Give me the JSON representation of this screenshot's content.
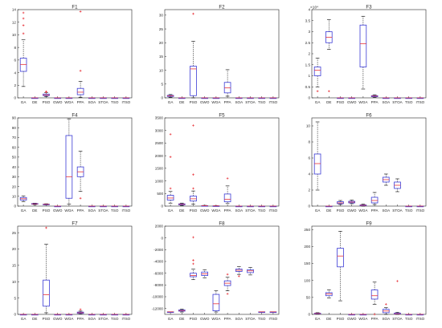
{
  "categories": [
    "GA",
    "DE",
    "PSO",
    "GWO",
    "WOA",
    "PPA",
    "SOA",
    "STOA",
    "TSO",
    "ITSO"
  ],
  "colors": {
    "box": "#3b3bd6",
    "median": "#e8333a",
    "whisker": "#000000",
    "outlier": "#e8333a",
    "axis": "#262626",
    "tick_text": "#262626"
  },
  "chart_data": [
    {
      "type": "box",
      "title": "F1",
      "ylim": [
        0,
        14
      ],
      "yticks": [
        "0",
        "2",
        "4",
        "6",
        "8",
        "10",
        "12",
        "14"
      ],
      "exponent": "",
      "boxes": [
        {
          "min": 1.8,
          "q1": 4.2,
          "median": 5.3,
          "q3": 6.3,
          "max": 9.2,
          "outliers": [
            10.2,
            11.5,
            12.6,
            13.5
          ]
        },
        {
          "min": 0,
          "q1": 0,
          "median": 0,
          "q3": 0,
          "max": 0,
          "outliers": []
        },
        {
          "min": 0.2,
          "q1": 0.35,
          "median": 0.45,
          "q3": 0.6,
          "max": 0.85,
          "outliers": [
            0.9,
            1.0
          ]
        },
        {
          "min": 0,
          "q1": 0,
          "median": 0,
          "q3": 0,
          "max": 0,
          "outliers": []
        },
        {
          "min": 0,
          "q1": 0,
          "median": 0,
          "q3": 0,
          "max": 0,
          "outliers": []
        },
        {
          "min": 0.1,
          "q1": 0.5,
          "median": 0.9,
          "q3": 1.5,
          "max": 2.6,
          "outliers": [
            4.3,
            13.7
          ]
        },
        {
          "min": 0,
          "q1": 0,
          "median": 0,
          "q3": 0,
          "max": 0,
          "outliers": []
        },
        {
          "min": 0,
          "q1": 0,
          "median": 0,
          "q3": 0,
          "max": 0,
          "outliers": []
        },
        {
          "min": 0,
          "q1": 0,
          "median": 0,
          "q3": 0,
          "max": 0,
          "outliers": []
        },
        {
          "min": 0,
          "q1": 0,
          "median": 0,
          "q3": 0,
          "max": 0,
          "outliers": []
        }
      ]
    },
    {
      "type": "box",
      "title": "F2",
      "ylim": [
        0,
        32
      ],
      "yticks": [
        "0",
        "5",
        "10",
        "15",
        "20",
        "25",
        "30"
      ],
      "exponent": "",
      "boxes": [
        {
          "min": 0.2,
          "q1": 0.5,
          "median": 0.7,
          "q3": 0.9,
          "max": 1.2,
          "outliers": []
        },
        {
          "min": 0,
          "q1": 0,
          "median": 0,
          "q3": 0,
          "max": 0,
          "outliers": []
        },
        {
          "min": 0,
          "q1": 0.8,
          "median": 10.5,
          "q3": 11.5,
          "max": 20.5,
          "outliers": [
            30.5
          ]
        },
        {
          "min": 0,
          "q1": 0,
          "median": 0,
          "q3": 0,
          "max": 0,
          "outliers": []
        },
        {
          "min": 0,
          "q1": 0,
          "median": 0,
          "q3": 0,
          "max": 0,
          "outliers": []
        },
        {
          "min": 0.6,
          "q1": 1.8,
          "median": 3.6,
          "q3": 5.6,
          "max": 10.2,
          "outliers": []
        },
        {
          "min": 0,
          "q1": 0,
          "median": 0,
          "q3": 0,
          "max": 0,
          "outliers": []
        },
        {
          "min": 0,
          "q1": 0,
          "median": 0,
          "q3": 0,
          "max": 0,
          "outliers": []
        },
        {
          "min": 0,
          "q1": 0,
          "median": 0,
          "q3": 0,
          "max": 0,
          "outliers": []
        },
        {
          "min": 0,
          "q1": 0,
          "median": 0,
          "q3": 0,
          "max": 0,
          "outliers": []
        }
      ]
    },
    {
      "type": "box",
      "title": "F3",
      "ylim": [
        0,
        4
      ],
      "yticks": [
        "0",
        "0.5",
        "1",
        "1.5",
        "2",
        "2.5",
        "3",
        "3.5",
        "4"
      ],
      "exponent": "×10⁴",
      "boxes": [
        {
          "min": 0.5,
          "q1": 1.0,
          "median": 1.25,
          "q3": 1.4,
          "max": 1.8,
          "outliers": [
            0.3
          ]
        },
        {
          "min": 2.2,
          "q1": 2.5,
          "median": 2.75,
          "q3": 3.0,
          "max": 3.55,
          "outliers": [
            0.3
          ]
        },
        {
          "min": 0,
          "q1": 0,
          "median": 0,
          "q3": 0,
          "max": 0,
          "outliers": []
        },
        {
          "min": 0,
          "q1": 0,
          "median": 0,
          "q3": 0,
          "max": 0,
          "outliers": []
        },
        {
          "min": 0.4,
          "q1": 1.4,
          "median": 2.45,
          "q3": 3.3,
          "max": 3.7,
          "outliers": []
        },
        {
          "min": 0.02,
          "q1": 0.05,
          "median": 0.08,
          "q3": 0.1,
          "max": 0.14,
          "outliers": []
        },
        {
          "min": 0,
          "q1": 0,
          "median": 0,
          "q3": 0,
          "max": 0,
          "outliers": []
        },
        {
          "min": 0,
          "q1": 0,
          "median": 0,
          "q3": 0,
          "max": 0,
          "outliers": []
        },
        {
          "min": 0,
          "q1": 0,
          "median": 0,
          "q3": 0,
          "max": 0,
          "outliers": []
        },
        {
          "min": 0,
          "q1": 0,
          "median": 0,
          "q3": 0,
          "max": 0,
          "outliers": []
        }
      ]
    },
    {
      "type": "box",
      "title": "F4",
      "ylim": [
        0,
        90
      ],
      "yticks": [
        "0",
        "10",
        "20",
        "30",
        "40",
        "50",
        "60",
        "70",
        "80",
        "90"
      ],
      "exponent": "",
      "boxes": [
        {
          "min": 4.5,
          "q1": 6.2,
          "median": 7.5,
          "q3": 8.8,
          "max": 10.5,
          "outliers": []
        },
        {
          "min": 1.5,
          "q1": 2.0,
          "median": 2.3,
          "q3": 2.6,
          "max": 3.0,
          "outliers": []
        },
        {
          "min": 1.2,
          "q1": 1.6,
          "median": 1.8,
          "q3": 2.0,
          "max": 2.4,
          "outliers": []
        },
        {
          "min": 0,
          "q1": 0,
          "median": 0,
          "q3": 0,
          "max": 0,
          "outliers": []
        },
        {
          "min": 2,
          "q1": 8,
          "median": 30,
          "q3": 72,
          "max": 89,
          "outliers": []
        },
        {
          "min": 15,
          "q1": 30,
          "median": 35,
          "q3": 40,
          "max": 56,
          "outliers": [
            8
          ]
        },
        {
          "min": 0,
          "q1": 0,
          "median": 0,
          "q3": 0,
          "max": 0,
          "outliers": []
        },
        {
          "min": 0,
          "q1": 0,
          "median": 0,
          "q3": 0,
          "max": 0,
          "outliers": []
        },
        {
          "min": 0,
          "q1": 0,
          "median": 0,
          "q3": 0,
          "max": 0,
          "outliers": []
        },
        {
          "min": 0,
          "q1": 0,
          "median": 0,
          "q3": 0,
          "max": 0,
          "outliers": []
        }
      ]
    },
    {
      "type": "box",
      "title": "F5",
      "ylim": [
        0,
        3500
      ],
      "yticks": [
        "0",
        "500",
        "1000",
        "1500",
        "2000",
        "2500",
        "3000",
        "3500"
      ],
      "exponent": "",
      "boxes": [
        {
          "min": 120,
          "q1": 240,
          "median": 320,
          "q3": 430,
          "max": 580,
          "outliers": [
            700,
            1950,
            2850
          ]
        },
        {
          "min": 20,
          "q1": 50,
          "median": 70,
          "q3": 90,
          "max": 120,
          "outliers": []
        },
        {
          "min": 80,
          "q1": 200,
          "median": 290,
          "q3": 400,
          "max": 600,
          "outliers": [
            700,
            1250,
            3200
          ]
        },
        {
          "min": 0,
          "q1": 10,
          "median": 15,
          "q3": 20,
          "max": 30,
          "outliers": []
        },
        {
          "min": 0,
          "q1": 5,
          "median": 8,
          "q3": 12,
          "max": 18,
          "outliers": []
        },
        {
          "min": 100,
          "q1": 170,
          "median": 270,
          "q3": 480,
          "max": 800,
          "outliers": [
            1100
          ]
        },
        {
          "min": 0,
          "q1": 0,
          "median": 0,
          "q3": 0,
          "max": 0,
          "outliers": []
        },
        {
          "min": 0,
          "q1": 0,
          "median": 0,
          "q3": 0,
          "max": 0,
          "outliers": []
        },
        {
          "min": 0,
          "q1": 0,
          "median": 0,
          "q3": 0,
          "max": 0,
          "outliers": []
        },
        {
          "min": 0,
          "q1": 0,
          "median": 0,
          "q3": 0,
          "max": 0,
          "outliers": []
        }
      ]
    },
    {
      "type": "box",
      "title": "F6",
      "ylim": [
        0,
        11
      ],
      "yticks": [
        "0",
        "2",
        "4",
        "6",
        "8",
        "10"
      ],
      "exponent": "",
      "boxes": [
        {
          "min": 2.0,
          "q1": 4.0,
          "median": 5.3,
          "q3": 6.5,
          "max": 10.5,
          "outliers": []
        },
        {
          "min": 0,
          "q1": 0,
          "median": 0,
          "q3": 0,
          "max": 0,
          "outliers": []
        },
        {
          "min": 0.2,
          "q1": 0.3,
          "median": 0.4,
          "q3": 0.55,
          "max": 0.7,
          "outliers": []
        },
        {
          "min": 0.3,
          "q1": 0.4,
          "median": 0.5,
          "q3": 0.6,
          "max": 0.75,
          "outliers": []
        },
        {
          "min": 0,
          "q1": 0.05,
          "median": 0.1,
          "q3": 0.15,
          "max": 0.25,
          "outliers": []
        },
        {
          "min": 0.2,
          "q1": 0.4,
          "median": 0.7,
          "q3": 1.1,
          "max": 1.7,
          "outliers": []
        },
        {
          "min": 2.6,
          "q1": 3.0,
          "median": 3.3,
          "q3": 3.6,
          "max": 4.0,
          "outliers": []
        },
        {
          "min": 1.8,
          "q1": 2.2,
          "median": 2.6,
          "q3": 3.0,
          "max": 3.4,
          "outliers": []
        },
        {
          "min": 0,
          "q1": 0,
          "median": 0,
          "q3": 0,
          "max": 0,
          "outliers": []
        },
        {
          "min": 0,
          "q1": 0,
          "median": 0,
          "q3": 0,
          "max": 0,
          "outliers": []
        }
      ]
    },
    {
      "type": "box",
      "title": "F7",
      "ylim": [
        0,
        27
      ],
      "yticks": [
        "0",
        "5",
        "10",
        "15",
        "20",
        "25"
      ],
      "exponent": "",
      "boxes": [
        {
          "min": 0,
          "q1": 0,
          "median": 0,
          "q3": 0,
          "max": 0,
          "outliers": []
        },
        {
          "min": 0,
          "q1": 0,
          "median": 0,
          "q3": 0,
          "max": 0,
          "outliers": []
        },
        {
          "min": 0.5,
          "q1": 2.5,
          "median": 6.0,
          "q3": 10.5,
          "max": 21.5,
          "outliers": [
            26.5
          ]
        },
        {
          "min": 0,
          "q1": 0,
          "median": 0,
          "q3": 0,
          "max": 0,
          "outliers": []
        },
        {
          "min": 0,
          "q1": 0,
          "median": 0,
          "q3": 0,
          "max": 0,
          "outliers": []
        },
        {
          "min": 0.1,
          "q1": 0.3,
          "median": 0.5,
          "q3": 0.7,
          "max": 1.0,
          "outliers": [
            1.5
          ]
        },
        {
          "min": 0,
          "q1": 0,
          "median": 0,
          "q3": 0,
          "max": 0,
          "outliers": []
        },
        {
          "min": 0,
          "q1": 0,
          "median": 0,
          "q3": 0,
          "max": 0,
          "outliers": []
        },
        {
          "min": 0,
          "q1": 0,
          "median": 0,
          "q3": 0,
          "max": 0,
          "outliers": []
        },
        {
          "min": 0,
          "q1": 0,
          "median": 0,
          "q3": 0,
          "max": 0,
          "outliers": []
        }
      ]
    },
    {
      "type": "box",
      "title": "F8",
      "ylim": [
        -13000,
        2000
      ],
      "yticks": [
        "-12000",
        "-10000",
        "-8000",
        "-6000",
        "-4000",
        "-2000",
        "0",
        "2000"
      ],
      "exponent": "",
      "boxes": [
        {
          "min": -12570,
          "q1": -12570,
          "median": -12570,
          "q3": -12570,
          "max": -12570,
          "outliers": []
        },
        {
          "min": -12600,
          "q1": -12450,
          "median": -12350,
          "q3": -12250,
          "max": -12100,
          "outliers": []
        },
        {
          "min": -7100,
          "q1": -6600,
          "median": -6400,
          "q3": -6000,
          "max": -5300,
          "outliers": [
            -4400,
            -3800,
            100
          ]
        },
        {
          "min": -6800,
          "q1": -6400,
          "median": -6100,
          "q3": -5800,
          "max": -5400,
          "outliers": []
        },
        {
          "min": -12600,
          "q1": -12400,
          "median": -11200,
          "q3": -9600,
          "max": -9000,
          "outliers": []
        },
        {
          "min": -9000,
          "q1": -8100,
          "median": -7700,
          "q3": -7300,
          "max": -6700,
          "outliers": [
            -9500,
            -6200
          ]
        },
        {
          "min": -6200,
          "q1": -5700,
          "median": -5500,
          "q3": -5300,
          "max": -4900,
          "outliers": [
            -6500
          ]
        },
        {
          "min": -6300,
          "q1": -5900,
          "median": -5600,
          "q3": -5400,
          "max": -5000,
          "outliers": []
        },
        {
          "min": -12570,
          "q1": -12570,
          "median": -12570,
          "q3": -12570,
          "max": -12570,
          "outliers": []
        },
        {
          "min": -12570,
          "q1": -12570,
          "median": -12570,
          "q3": -12570,
          "max": -12570,
          "outliers": []
        }
      ]
    },
    {
      "type": "box",
      "title": "F9",
      "ylim": [
        0,
        260
      ],
      "yticks": [
        "0",
        "50",
        "100",
        "150",
        "200",
        "250"
      ],
      "exponent": "",
      "boxes": [
        {
          "min": 0.5,
          "q1": 1.5,
          "median": 2.5,
          "q3": 3.5,
          "max": 5,
          "outliers": []
        },
        {
          "min": 48,
          "q1": 55,
          "median": 60,
          "q3": 64,
          "max": 72,
          "outliers": []
        },
        {
          "min": 40,
          "q1": 140,
          "median": 172,
          "q3": 195,
          "max": 245,
          "outliers": []
        },
        {
          "min": 0,
          "q1": 0,
          "median": 0,
          "q3": 0,
          "max": 0,
          "outliers": []
        },
        {
          "min": 0,
          "q1": 0,
          "median": 0,
          "q3": 0,
          "max": 0,
          "outliers": []
        },
        {
          "min": 30,
          "q1": 45,
          "median": 55,
          "q3": 72,
          "max": 95,
          "outliers": [
            0
          ]
        },
        {
          "min": 0,
          "q1": 5,
          "median": 10,
          "q3": 15,
          "max": 20,
          "outliers": [
            30
          ]
        },
        {
          "min": 0,
          "q1": 1,
          "median": 2,
          "q3": 4,
          "max": 6,
          "outliers": [
            98
          ]
        },
        {
          "min": 0,
          "q1": 0,
          "median": 0,
          "q3": 0,
          "max": 0,
          "outliers": []
        },
        {
          "min": 0,
          "q1": 0,
          "median": 0,
          "q3": 0,
          "max": 0,
          "outliers": []
        }
      ]
    }
  ]
}
